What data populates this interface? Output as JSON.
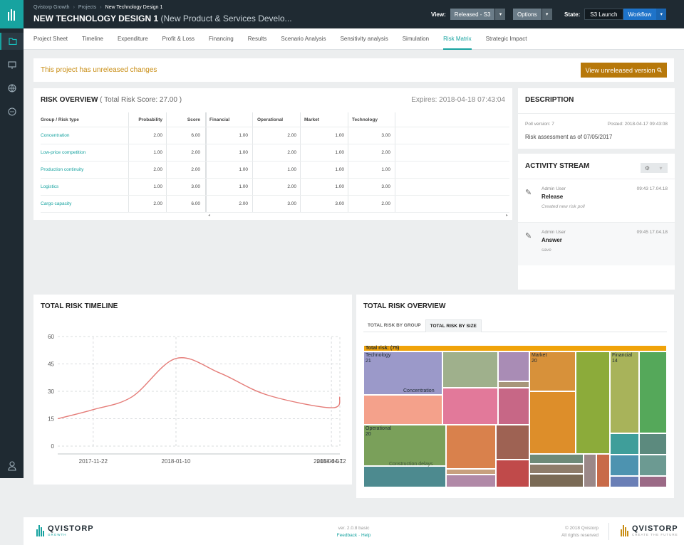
{
  "header": {
    "breadcrumb": [
      "Qvistorp Growth",
      "Projects",
      "New Technology Design 1"
    ],
    "title": "NEW TECHNOLOGY DESIGN 1",
    "subtitle": "(New Product & Services Develo...",
    "view_label": "View:",
    "view_value": "Released - S3",
    "options_label": "Options",
    "state_label": "State:",
    "state_value": "S3 Launch",
    "workflow_label": "Workflow"
  },
  "tabs": [
    "Project Sheet",
    "Timeline",
    "Expenditure",
    "Profit & Loss",
    "Financing",
    "Results",
    "Scenario Analysis",
    "Sensitivity analysis",
    "Simulation",
    "Risk Matrix",
    "Strategic Impact"
  ],
  "active_tab": "Risk Matrix",
  "alert": {
    "message": "This project has unreleased changes",
    "button": "View unreleased version"
  },
  "risk_overview": {
    "title": "RISK OVERVIEW",
    "score_text": "( Total Risk Score: 27.00 )",
    "expires": "Expires: 2018-04-18 07:43:04",
    "columns": [
      "Group / Risk type",
      "Probability",
      "Score",
      "Financial",
      "Operational",
      "Market",
      "Technology"
    ],
    "rows": [
      {
        "name": "Concentration",
        "values": [
          "2.00",
          "6.00",
          "1.00",
          "2.00",
          "1.00",
          "3.00"
        ]
      },
      {
        "name": "Low-price competition",
        "values": [
          "1.00",
          "2.00",
          "1.00",
          "2.00",
          "1.00",
          "2.00"
        ]
      },
      {
        "name": "Production continuity",
        "values": [
          "2.00",
          "2.00",
          "1.00",
          "1.00",
          "1.00",
          "1.00"
        ]
      },
      {
        "name": "Logistics",
        "values": [
          "1.00",
          "3.00",
          "1.00",
          "2.00",
          "1.00",
          "3.00"
        ]
      },
      {
        "name": "Cargo capacity",
        "values": [
          "2.00",
          "6.00",
          "2.00",
          "3.00",
          "3.00",
          "2.00"
        ]
      }
    ]
  },
  "description": {
    "title": "DESCRIPTION",
    "poll_version": "Poll version: 7",
    "posted": "Posted: 2018-04-17 09:43:08",
    "text": "Risk assessment as of 07/05/2017"
  },
  "activity": {
    "title": "ACTIVITY STREAM",
    "items": [
      {
        "user": "Admin User",
        "time": "09:43 17.04.18",
        "title": "Release",
        "note": "Created new risk poll"
      },
      {
        "user": "Admin User",
        "time": "09:45 17.04.18",
        "title": "Answer",
        "note": "save"
      }
    ]
  },
  "timeline": {
    "title": "TOTAL RISK TIMELINE"
  },
  "chart_data": {
    "type": "line",
    "x": [
      "2017-11-01",
      "2017-11-22",
      "2017-12-15",
      "2018-01-10",
      "2018-02-05",
      "2018-03-05",
      "2018-04-12",
      "2018-04-17"
    ],
    "series": [
      {
        "values": [
          15,
          20,
          27,
          48,
          40,
          28,
          21,
          27
        ]
      }
    ],
    "x_ticks": [
      "2017-11-22",
      "2018-01-10",
      "2018-04-12",
      "2018-04-17"
    ],
    "y_ticks": [
      "0",
      "15",
      "30",
      "45",
      "60"
    ],
    "ylim": [
      0,
      60
    ],
    "grid": true,
    "color": "#e57d79"
  },
  "tree_overview": {
    "title": "TOTAL RISK OVERVIEW",
    "tabs": [
      "TOTAL RISK BY GROUP",
      "TOTAL RISK BY SIZE"
    ],
    "active_tab": "TOTAL RISK BY SIZE",
    "total_label": "Total risk: (75)",
    "groups": [
      {
        "name": "Technology",
        "value": "21"
      },
      {
        "name": "Market",
        "value": "20"
      },
      {
        "name": "Financial",
        "value": "14"
      },
      {
        "name": "Operational",
        "value": "20"
      }
    ],
    "inner_labels": [
      "Concentration",
      "Construction delays"
    ]
  },
  "footer": {
    "brand": "QVISTORP",
    "tagline": "GROWTH",
    "tagline_right": "CREATE THE FUTURE",
    "version": "ver. 2.0.8 basic",
    "links": "Feedback · Help",
    "copyright": "© 2018 Qvistorp",
    "rights": "All rights reserved"
  }
}
